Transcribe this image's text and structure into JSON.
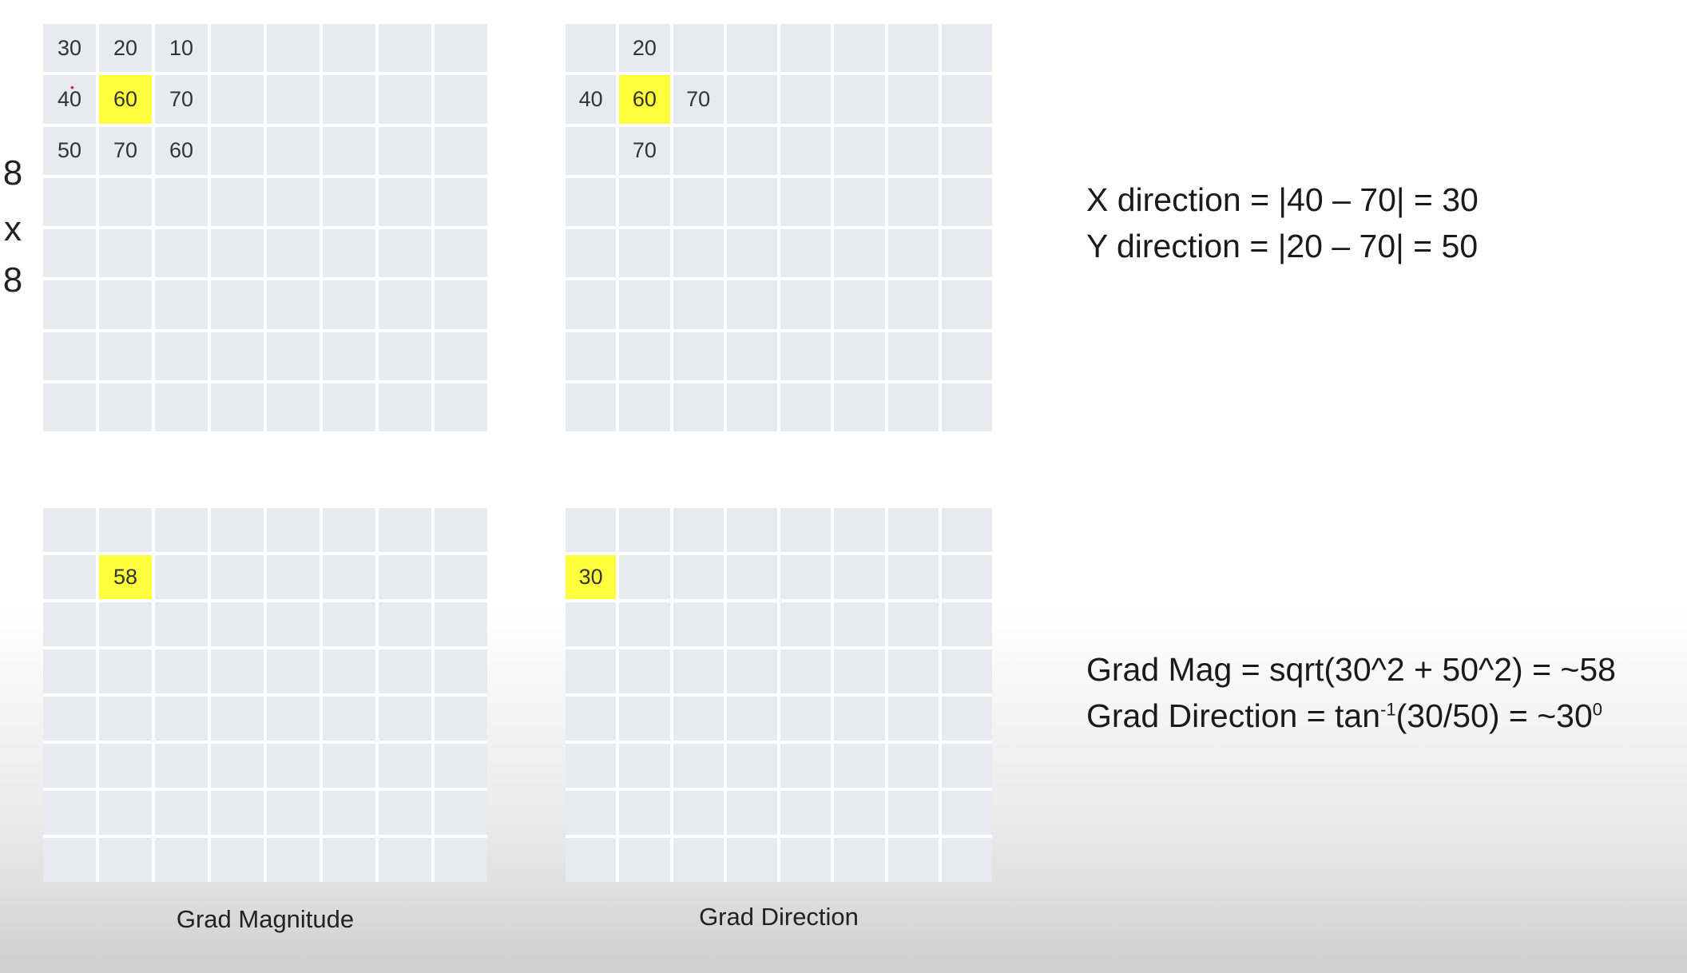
{
  "dimension_label": [
    "8",
    "x",
    "8"
  ],
  "top_left_grid": {
    "row1": [
      "30",
      "20",
      "10"
    ],
    "row2": [
      "40",
      "60",
      "70"
    ],
    "row3": [
      "50",
      "70",
      "60"
    ]
  },
  "top_right_grid": {
    "top": "20",
    "left": "40",
    "center": "60",
    "right": "70",
    "bottom": "70"
  },
  "bottom_left_grid": {
    "value": "58"
  },
  "bottom_right_grid": {
    "value": "30"
  },
  "captions": {
    "left": "Grad Magnitude",
    "right": "Grad Direction"
  },
  "equations": {
    "x_direction": "X direction = |40 – 70| = 30",
    "y_direction": "Y direction = |20 – 70| = 50",
    "grad_mag": "Grad Mag = sqrt(30^2 + 50^2) = ~58",
    "grad_dir_prefix": "Grad Direction = tan",
    "grad_dir_sup": "-1",
    "grad_dir_suffix": "(30/50) = ~30",
    "grad_dir_deg": "0"
  },
  "colors": {
    "highlight": "#ffff3c",
    "cell": "#e9e9f2"
  }
}
